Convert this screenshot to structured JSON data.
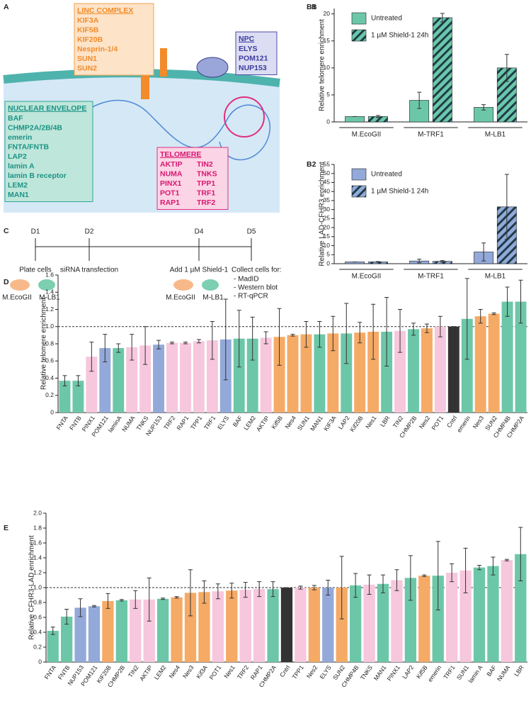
{
  "panel_labels": [
    "A",
    "B",
    "C"
  ],
  "panel_a": {
    "linc": {
      "title": "LINC COMPLEX",
      "items": [
        "KIF3A",
        "KIF5B",
        "KIF20B",
        "Nesprin-1/4",
        "SUN1",
        "SUN2"
      ]
    },
    "npc": {
      "title": "NPC",
      "items": [
        "ELYS",
        "POM121",
        "NUP153"
      ]
    },
    "envelope": {
      "title": "NUCLEAR ENVELOPE",
      "items": [
        "BAF",
        "CHMP2A/2B/4B",
        "emerin",
        "FNTA/FNTB",
        "LAP2",
        "lamin A",
        "lamin B receptor",
        "LEM2",
        "MAN1"
      ]
    },
    "telomere": {
      "title": "TELOMERE",
      "items": [
        "AKTIP",
        "TIN2",
        "NUMA",
        "TNKS",
        "PINX1",
        "TPP1",
        "POT1",
        "TRF1",
        "RAP1",
        "TRF2"
      ]
    }
  },
  "panel_c": {
    "days": [
      "D1",
      "D2",
      "D4",
      "D5"
    ],
    "steps": [
      "Plate cells",
      "siRNA transfection",
      "Add 1 µM Shield-1",
      "Collect cells for:"
    ],
    "collect": [
      "- MadID",
      "- Western blot",
      "- RT-qPCR"
    ],
    "cells": [
      "M.EcoGII",
      "M-LB1"
    ]
  },
  "chart_data": [
    {
      "type": "bar",
      "panel": "B1",
      "y_label": "Relative telomere enrichment",
      "categories": [
        "M.EcoGII",
        "M-TRF1",
        "M-LB1"
      ],
      "series": [
        {
          "name": "Untreated",
          "color": "#6cc7a8",
          "values": [
            1,
            4.0,
            2.7
          ],
          "errors": [
            0,
            1.5,
            0.5
          ]
        },
        {
          "name": "1 µM Shield-1 24h",
          "color": "#6cc7a8",
          "hatch": true,
          "values": [
            1,
            19.3,
            10.0
          ],
          "errors": [
            0.2,
            0.8,
            2.5
          ]
        }
      ],
      "ylim": [
        0,
        21
      ],
      "yticks": [
        0,
        5,
        10,
        15,
        20
      ]
    },
    {
      "type": "bar",
      "panel": "B2",
      "y_label": "Relative LAD-CFHR3 enrichment",
      "categories": [
        "M.EcoGII",
        "M-TRF1",
        "M-LB1"
      ],
      "series": [
        {
          "name": "Untreated",
          "color": "#93a9d9",
          "values": [
            1,
            1.5,
            6.5
          ],
          "errors": [
            0,
            1,
            5
          ]
        },
        {
          "name": "1 µM Shield-1 24h",
          "color": "#93a9d9",
          "hatch": true,
          "values": [
            1,
            1.3,
            31.5
          ],
          "errors": [
            0.2,
            0.4,
            18
          ]
        }
      ],
      "ylim": [
        0,
        55
      ],
      "yticks": [
        0,
        5,
        10,
        15,
        20,
        25,
        30,
        35,
        40,
        45,
        50,
        55
      ]
    },
    {
      "type": "bar",
      "panel": "D",
      "y_label": "Relative telomere enrichment",
      "reference_line": 1,
      "categories": [
        "FNTA",
        "FNTB",
        "PINX1",
        "POM121",
        "laminA",
        "NUMA",
        "TNKS",
        "NUP153",
        "TRF2",
        "RAP1",
        "TPP1",
        "TRF1",
        "ELYS",
        "BAF",
        "LEM2",
        "AKTIP",
        "Kif5B",
        "Nes4",
        "SUN1",
        "MAN1",
        "KIF3A",
        "LAP2",
        "Kif20B",
        "Nes1",
        "LBR",
        "TIN2",
        "CHMP2B",
        "Nes2",
        "POT1",
        "Cntrl",
        "emerin",
        "Nes3",
        "SUN2",
        "CHMP4B",
        "CHMP2A"
      ],
      "values": [
        0.37,
        0.37,
        0.65,
        0.75,
        0.75,
        0.76,
        0.78,
        0.79,
        0.81,
        0.81,
        0.83,
        0.84,
        0.85,
        0.86,
        0.86,
        0.87,
        0.88,
        0.9,
        0.91,
        0.91,
        0.92,
        0.92,
        0.93,
        0.94,
        0.94,
        0.95,
        0.97,
        0.98,
        1.0,
        1.0,
        1.09,
        1.12,
        1.15,
        1.29,
        1.29
      ],
      "errors": [
        0.06,
        0.06,
        0.17,
        0.16,
        0.05,
        0.15,
        0.22,
        0.05,
        0.01,
        0.01,
        0.02,
        0.22,
        0.47,
        0.33,
        0.25,
        0.07,
        0.33,
        0.01,
        0.15,
        0.15,
        0.2,
        0.35,
        0.12,
        0.32,
        0.4,
        0.25,
        0.07,
        0.05,
        0.12,
        0,
        0.47,
        0.08,
        0.01,
        0.17,
        0.25
      ],
      "colors": [
        "#6cc7a8",
        "#6cc7a8",
        "#f6c7dd",
        "#93a9d9",
        "#6cc7a8",
        "#f6c7dd",
        "#f6c7dd",
        "#93a9d9",
        "#f6c7dd",
        "#f6c7dd",
        "#f6c7dd",
        "#f6c7dd",
        "#93a9d9",
        "#6cc7a8",
        "#6cc7a8",
        "#f6c7dd",
        "#f5aa66",
        "#f5aa66",
        "#f5aa66",
        "#6cc7a8",
        "#f5aa66",
        "#6cc7a8",
        "#f5aa66",
        "#f5aa66",
        "#6cc7a8",
        "#f6c7dd",
        "#6cc7a8",
        "#f5aa66",
        "#f6c7dd",
        "#333333",
        "#6cc7a8",
        "#f5aa66",
        "#f5aa66",
        "#6cc7a8",
        "#6cc7a8"
      ],
      "ylim": [
        0,
        1.6
      ],
      "yticks": [
        0,
        {
          "value": 0.2,
          "label": "0.2"
        },
        {
          "value": 0.4,
          "label": "0.4"
        },
        {
          "value": 0.6,
          "label": "0.6"
        },
        {
          "value": 0.8,
          "label": "0.8"
        },
        {
          "value": 1,
          "label": "1.0"
        },
        {
          "value": 1.2,
          "label": "1.2"
        },
        {
          "value": 1.4,
          "label": "1.4"
        },
        {
          "value": 1.6,
          "label": "1.6"
        }
      ]
    },
    {
      "type": "bar",
      "panel": "E",
      "y_label": "Relative CFHR3-LAD enrichment",
      "reference_line": 1,
      "categories": [
        "FNTA",
        "FNTB",
        "NUP153",
        "POM121",
        "KIF20B",
        "CHMP2B",
        "TIN2",
        "AKTIP",
        "LEM2",
        "Nes4",
        "Nes3",
        "Kif3A",
        "POT1",
        "Nes1",
        "TRF2",
        "RAP1",
        "CHMP2A",
        "Cntrl",
        "TPP1",
        "Nes2",
        "ELYS",
        "SUN2",
        "CHMP4B",
        "TNKS",
        "MAN1",
        "PINX1",
        "LAP2",
        "Kif5B",
        "emerin",
        "TRF1",
        "SUN1",
        "lamin A",
        "BAF",
        "NUMA",
        "LBR"
      ],
      "values": [
        0.42,
        0.61,
        0.73,
        0.75,
        0.82,
        0.83,
        0.84,
        0.84,
        0.85,
        0.87,
        0.93,
        0.94,
        0.95,
        0.96,
        0.97,
        0.98,
        0.98,
        1.0,
        1.0,
        1.0,
        1.0,
        1.0,
        1.03,
        1.04,
        1.05,
        1.1,
        1.13,
        1.16,
        1.16,
        1.2,
        1.23,
        1.27,
        1.29,
        1.37,
        1.45
      ],
      "errors": [
        0.05,
        0.1,
        0.12,
        0.01,
        0.1,
        0.01,
        0.12,
        0.29,
        0.01,
        0.01,
        0.31,
        0.15,
        0.1,
        0.1,
        0.1,
        0.1,
        0.1,
        0,
        0.02,
        0.03,
        0.1,
        0.42,
        0.16,
        0.13,
        0.12,
        0.14,
        0.3,
        0.01,
        0.46,
        0.12,
        0.3,
        0.03,
        0.12,
        0.01,
        0.36
      ],
      "colors": [
        "#6cc7a8",
        "#6cc7a8",
        "#93a9d9",
        "#93a9d9",
        "#f5aa66",
        "#6cc7a8",
        "#f6c7dd",
        "#f6c7dd",
        "#6cc7a8",
        "#f5aa66",
        "#f5aa66",
        "#f5aa66",
        "#f6c7dd",
        "#f5aa66",
        "#f6c7dd",
        "#f6c7dd",
        "#6cc7a8",
        "#333333",
        "#f6c7dd",
        "#f5aa66",
        "#93a9d9",
        "#f5aa66",
        "#6cc7a8",
        "#f6c7dd",
        "#6cc7a8",
        "#f6c7dd",
        "#6cc7a8",
        "#f5aa66",
        "#6cc7a8",
        "#f6c7dd",
        "#f6c7dd",
        "#6cc7a8",
        "#6cc7a8",
        "#f6c7dd",
        "#6cc7a8"
      ],
      "ylim": [
        0,
        2
      ],
      "yticks": [
        0,
        {
          "value": 0.2,
          "label": "0.2"
        },
        {
          "value": 0.4,
          "label": "0.4"
        },
        {
          "value": 0.6,
          "label": "0.6"
        },
        {
          "value": 0.8,
          "label": "0.8"
        },
        {
          "value": 1,
          "label": "1.0"
        },
        {
          "value": 1.2,
          "label": "1.2"
        },
        {
          "value": 1.4,
          "label": "1.4"
        },
        {
          "value": 1.6,
          "label": "1.6"
        },
        {
          "value": 1.8,
          "label": "1.8"
        },
        {
          "value": 2,
          "label": "2.0"
        }
      ]
    }
  ]
}
